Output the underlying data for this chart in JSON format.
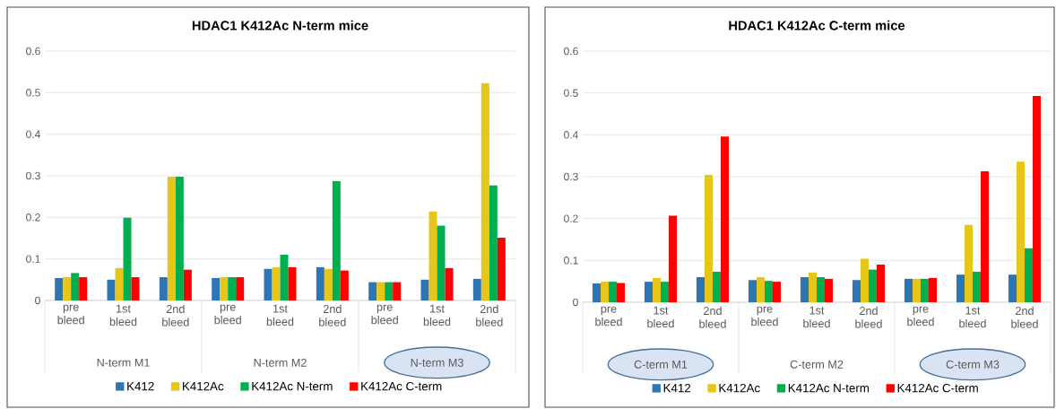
{
  "chart_data": [
    {
      "type": "bar",
      "title": "HDAC1 K412Ac N-term mice",
      "categories": [
        "pre bleed",
        "1st bleed",
        "2nd bleed",
        "pre bleed",
        "1st bleed",
        "2nd bleed",
        "pre bleed",
        "1st bleed",
        "2nd bleed"
      ],
      "series": [
        {
          "name": "K412",
          "color": "#2e75b6",
          "values": [
            0.054,
            0.05,
            0.056,
            0.054,
            0.076,
            0.08,
            0.044,
            0.05,
            0.052
          ]
        },
        {
          "name": "K412Ac",
          "color": "#e6c619",
          "values": [
            0.056,
            0.078,
            0.298,
            0.056,
            0.08,
            0.076,
            0.044,
            0.214,
            0.523
          ]
        },
        {
          "name": "K412Ac N-term",
          "color": "#00b050",
          "values": [
            0.066,
            0.199,
            0.298,
            0.056,
            0.11,
            0.287,
            0.044,
            0.18,
            0.277
          ]
        },
        {
          "name": "K412Ac C-term",
          "color": "#ff0000",
          "values": [
            0.056,
            0.056,
            0.074,
            0.056,
            0.08,
            0.072,
            0.044,
            0.078,
            0.151
          ]
        }
      ],
      "ylim": [
        0,
        0.6
      ],
      "yticks": [
        0,
        0.1,
        0.2,
        0.3,
        0.4,
        0.5,
        0.6
      ],
      "grid": "y",
      "legend": "bottom",
      "annotations": [
        "N-term M1",
        "N-term M2",
        "N-term M3"
      ]
    },
    {
      "type": "bar",
      "title": "HDAC1 K412Ac C-term mice",
      "categories": [
        "pre bleed",
        "1st bleed",
        "2nd bleed",
        "pre bleed",
        "1st bleed",
        "2nd bleed",
        "pre bleed",
        "1st bleed",
        "2nd bleed"
      ],
      "series": [
        {
          "name": "K412",
          "color": "#2e75b6",
          "values": [
            0.045,
            0.049,
            0.06,
            0.053,
            0.06,
            0.053,
            0.056,
            0.066,
            0.066
          ]
        },
        {
          "name": "K412Ac",
          "color": "#e6c619",
          "values": [
            0.049,
            0.058,
            0.304,
            0.06,
            0.071,
            0.104,
            0.056,
            0.185,
            0.336
          ]
        },
        {
          "name": "K412Ac N-term",
          "color": "#00b050",
          "values": [
            0.049,
            0.049,
            0.073,
            0.051,
            0.06,
            0.078,
            0.056,
            0.073,
            0.129
          ]
        },
        {
          "name": "K412Ac C-term",
          "color": "#ff0000",
          "values": [
            0.046,
            0.207,
            0.396,
            0.049,
            0.056,
            0.09,
            0.058,
            0.313,
            0.493
          ]
        }
      ],
      "ylim": [
        0,
        0.6
      ],
      "yticks": [
        0,
        0.1,
        0.2,
        0.3,
        0.4,
        0.5,
        0.6
      ],
      "grid": "y",
      "legend": "bottom",
      "annotations": [
        "C-term M1",
        "C-term M2",
        "C-term M3"
      ]
    }
  ]
}
